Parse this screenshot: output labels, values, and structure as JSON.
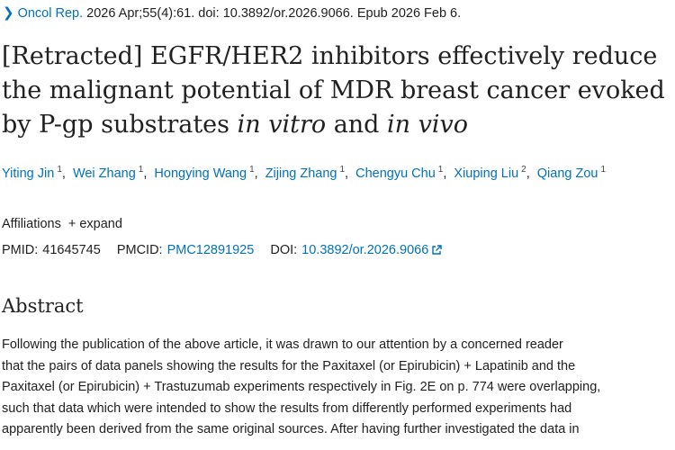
{
  "citation": {
    "journal": "Oncol Rep.",
    "details": "2026 Apr;55(4):61. doi: 10.3892/or.2026.9066. Epub 2026 Feb 6."
  },
  "title": {
    "part1": "[Retracted] EGFR/HER2 inhibitors effectively reduce the malignant potential of MDR breast cancer evoked by P-gp substrates ",
    "italic1": "in vitro",
    "part2": " and ",
    "italic2": "in vivo"
  },
  "authors": [
    {
      "name": "Yiting Jin",
      "aff": "1"
    },
    {
      "name": "Wei Zhang",
      "aff": "1"
    },
    {
      "name": "Hongying Wang",
      "aff": "1"
    },
    {
      "name": "Zijing Zhang",
      "aff": "1"
    },
    {
      "name": "Chengyu Chu",
      "aff": "1"
    },
    {
      "name": "Xiuping Liu",
      "aff": "2"
    },
    {
      "name": "Qiang Zou",
      "aff": "1"
    }
  ],
  "separator": ",",
  "affiliations": {
    "label": "Affiliations",
    "toggle": "+ expand"
  },
  "ids": {
    "pmid_label": "PMID:",
    "pmid": "41645745",
    "pmcid_label": "PMCID:",
    "pmcid": "PMC12891925",
    "doi_label": "DOI:",
    "doi": "10.3892/or.2026.9066"
  },
  "abstract": {
    "heading": "Abstract",
    "lines": [
      "Following the publication of the above article, it was drawn to our attention by a concerned reader",
      "that the pairs of data panels showing the results for the Paxitaxel (or Epirubicin) + Lapatinib and the",
      "Paxitaxel (or Epirubicin) + Trastuzumab experiments respectively in Fig. 2E on p. 774 were overlapping,",
      "such that data which were intended to show the results from differently performed experiments had",
      "apparently been derived from the same original sources. After having further investigated the data in"
    ]
  },
  "colors": {
    "link": "#0071bc",
    "text": "#212121"
  },
  "icons": {
    "citation_chevron": "chevron-right-icon",
    "doi_external": "external-link-icon"
  }
}
